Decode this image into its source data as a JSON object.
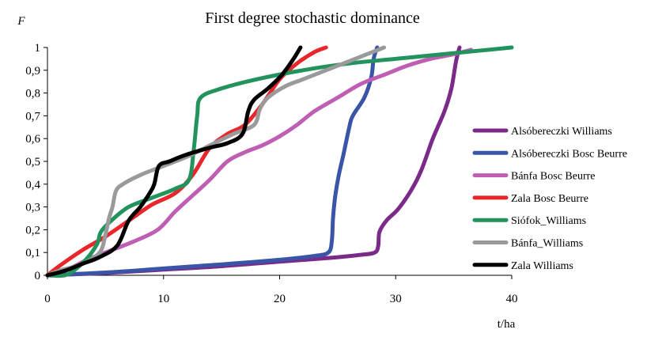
{
  "chart_data": {
    "type": "line",
    "title": "First degree stochastic dominance",
    "ylabel": "F",
    "xlabel": "t/ha",
    "xlim": [
      0,
      40
    ],
    "ylim": [
      0,
      1
    ],
    "x_ticks": [
      0,
      10,
      20,
      30,
      40
    ],
    "y_ticks": [
      0,
      0.1,
      0.2,
      0.3,
      0.4,
      0.5,
      0.6,
      0.7,
      0.8,
      0.9,
      1
    ],
    "y_tick_labels": [
      "0",
      "0,1",
      "0,2",
      "0,3",
      "0,4",
      "0,5",
      "0,6",
      "0,7",
      "0,8",
      "0,9",
      "1"
    ],
    "grid": false,
    "legend_position": "right",
    "series": [
      {
        "name": "Alsóbereczki Williams",
        "color": "#7b2a8a",
        "points": [
          [
            0,
            0
          ],
          [
            5,
            0.01
          ],
          [
            10,
            0.025
          ],
          [
            15,
            0.04
          ],
          [
            20,
            0.06
          ],
          [
            24,
            0.075
          ],
          [
            27,
            0.09
          ],
          [
            28.2,
            0.1
          ],
          [
            28.5,
            0.13
          ],
          [
            28.6,
            0.19
          ],
          [
            29.2,
            0.24
          ],
          [
            30.2,
            0.29
          ],
          [
            31.3,
            0.37
          ],
          [
            32.2,
            0.46
          ],
          [
            33.2,
            0.6
          ],
          [
            34.2,
            0.72
          ],
          [
            34.8,
            0.82
          ],
          [
            35.2,
            0.94
          ],
          [
            35.5,
            1.0
          ]
        ]
      },
      {
        "name": "Alsóbereczki Bosc Beurre",
        "color": "#3a55a8",
        "points": [
          [
            0,
            0
          ],
          [
            5,
            0.012
          ],
          [
            10,
            0.03
          ],
          [
            15,
            0.048
          ],
          [
            20,
            0.068
          ],
          [
            23,
            0.085
          ],
          [
            24.2,
            0.1
          ],
          [
            24.5,
            0.15
          ],
          [
            24.6,
            0.25
          ],
          [
            24.8,
            0.35
          ],
          [
            25.1,
            0.44
          ],
          [
            25.5,
            0.53
          ],
          [
            26,
            0.65
          ],
          [
            26.3,
            0.7
          ],
          [
            27.3,
            0.78
          ],
          [
            27.9,
            0.87
          ],
          [
            28.1,
            0.95
          ],
          [
            28.4,
            1.0
          ]
        ]
      },
      {
        "name": "Bánfa Bosc Beurre",
        "color": "#bf5fb4",
        "points": [
          [
            0,
            0
          ],
          [
            1.5,
            0.02
          ],
          [
            3.5,
            0.07
          ],
          [
            5.5,
            0.11
          ],
          [
            7.5,
            0.15
          ],
          [
            9.5,
            0.2
          ],
          [
            11,
            0.28
          ],
          [
            12.5,
            0.35
          ],
          [
            14,
            0.42
          ],
          [
            15.5,
            0.5
          ],
          [
            17,
            0.54
          ],
          [
            18.5,
            0.57
          ],
          [
            20,
            0.61
          ],
          [
            21.5,
            0.66
          ],
          [
            23,
            0.72
          ],
          [
            25,
            0.78
          ],
          [
            27,
            0.84
          ],
          [
            29,
            0.88
          ],
          [
            31,
            0.92
          ],
          [
            33,
            0.95
          ],
          [
            35,
            0.97
          ],
          [
            36.5,
            0.99
          ]
        ]
      },
      {
        "name": "Zala Bosc Beurre",
        "color": "#e8262b",
        "points": [
          [
            0,
            0
          ],
          [
            1,
            0.04
          ],
          [
            3,
            0.11
          ],
          [
            5,
            0.17
          ],
          [
            7,
            0.24
          ],
          [
            9,
            0.31
          ],
          [
            11,
            0.36
          ],
          [
            12.5,
            0.44
          ],
          [
            14,
            0.56
          ],
          [
            15.5,
            0.62
          ],
          [
            17,
            0.66
          ],
          [
            18.5,
            0.75
          ],
          [
            20,
            0.86
          ],
          [
            21.5,
            0.93
          ],
          [
            23,
            0.98
          ],
          [
            24,
            1.0
          ]
        ]
      },
      {
        "name": "Siófok_Williams",
        "color": "#22935c",
        "points": [
          [
            0,
            0
          ],
          [
            1.5,
            0
          ],
          [
            2.5,
            0.03
          ],
          [
            3.5,
            0.08
          ],
          [
            4.3,
            0.14
          ],
          [
            4.6,
            0.19
          ],
          [
            5.5,
            0.24
          ],
          [
            7,
            0.3
          ],
          [
            9,
            0.34
          ],
          [
            11,
            0.38
          ],
          [
            12.2,
            0.42
          ],
          [
            12.6,
            0.55
          ],
          [
            12.9,
            0.7
          ],
          [
            13.2,
            0.78
          ],
          [
            15,
            0.82
          ],
          [
            18,
            0.86
          ],
          [
            22,
            0.9
          ],
          [
            26,
            0.93
          ],
          [
            30,
            0.95
          ],
          [
            34,
            0.97
          ],
          [
            37,
            0.985
          ],
          [
            40,
            1.0
          ]
        ]
      },
      {
        "name": "Bánfa_Williams",
        "color": "#9a9a9a",
        "points": [
          [
            0,
            0
          ],
          [
            1,
            0.02
          ],
          [
            3,
            0.05
          ],
          [
            4.5,
            0.1
          ],
          [
            5,
            0.18
          ],
          [
            5.3,
            0.25
          ],
          [
            5.6,
            0.3
          ],
          [
            5.9,
            0.37
          ],
          [
            6.5,
            0.4
          ],
          [
            8,
            0.44
          ],
          [
            10,
            0.48
          ],
          [
            12,
            0.52
          ],
          [
            14,
            0.57
          ],
          [
            16,
            0.62
          ],
          [
            17.8,
            0.66
          ],
          [
            18.3,
            0.73
          ],
          [
            19,
            0.78
          ],
          [
            20.5,
            0.83
          ],
          [
            22,
            0.86
          ],
          [
            24,
            0.9
          ],
          [
            26,
            0.94
          ],
          [
            28,
            0.98
          ],
          [
            29,
            1.0
          ]
        ]
      },
      {
        "name": "Zala Williams",
        "color": "#000000",
        "points": [
          [
            0,
            0
          ],
          [
            1.5,
            0.02
          ],
          [
            3,
            0.05
          ],
          [
            4.5,
            0.08
          ],
          [
            6,
            0.13
          ],
          [
            7,
            0.24
          ],
          [
            8,
            0.3
          ],
          [
            8.8,
            0.36
          ],
          [
            9.2,
            0.4
          ],
          [
            9.6,
            0.48
          ],
          [
            10.5,
            0.5
          ],
          [
            12,
            0.53
          ],
          [
            14,
            0.56
          ],
          [
            15.5,
            0.58
          ],
          [
            16.8,
            0.62
          ],
          [
            17.3,
            0.72
          ],
          [
            17.8,
            0.77
          ],
          [
            19,
            0.82
          ],
          [
            20.2,
            0.88
          ],
          [
            21.2,
            0.95
          ],
          [
            21.8,
            1.0
          ]
        ]
      }
    ]
  }
}
